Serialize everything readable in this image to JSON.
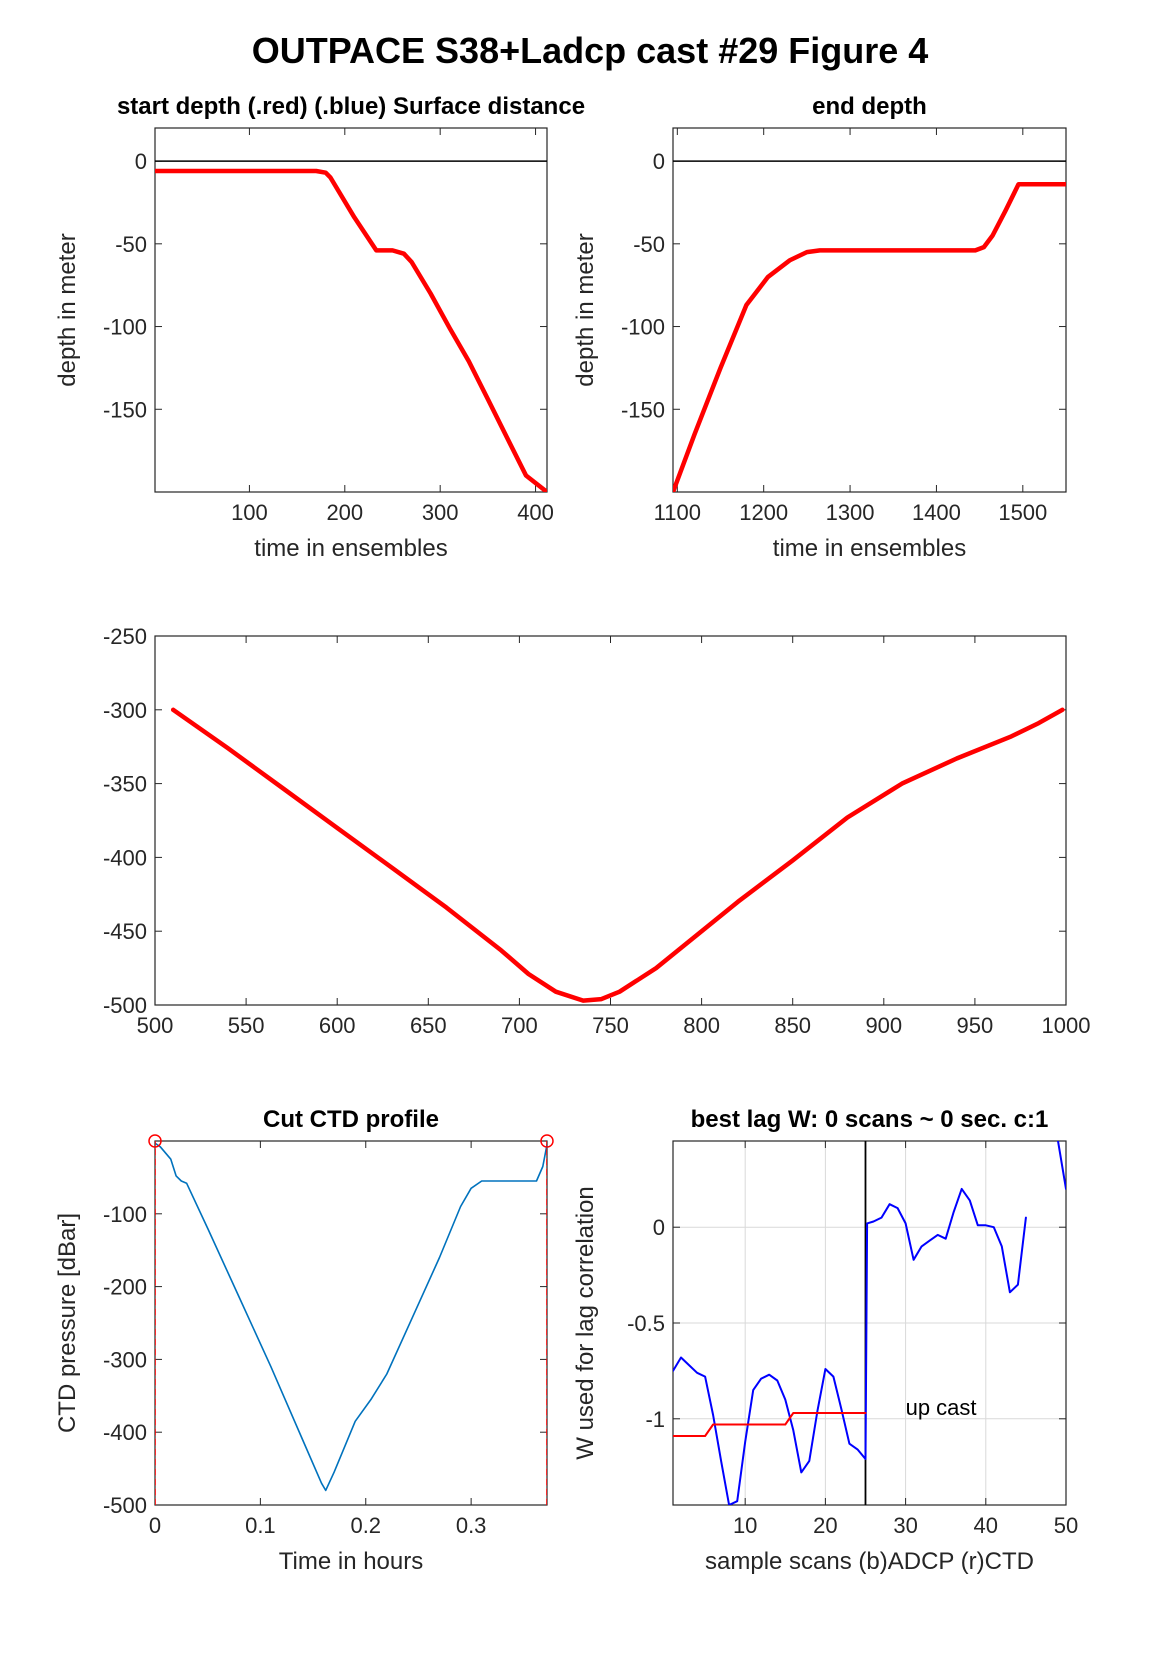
{
  "figure_title": "OUTPACE S38+Ladcp cast #29   Figure 4",
  "colors": {
    "red": "#ff0000",
    "blue": "#0000ff",
    "ctd_blue": "#0072bd",
    "axis": "#262626",
    "grid": "#d9d9d9"
  },
  "chart_data": [
    {
      "id": "start",
      "type": "line",
      "title": "start depth (.red) (.blue) Surface distance",
      "xlabel": "time in ensembles",
      "ylabel": "depth in meter",
      "xlim": [
        1,
        412
      ],
      "ylim": [
        -200,
        20
      ],
      "xticks": [
        100,
        200,
        300,
        400
      ],
      "yticks": [
        0,
        -50,
        -100,
        -150
      ],
      "hline": 0,
      "series": [
        {
          "color": "red",
          "x": [
            1,
            170,
            180,
            185,
            210,
            233,
            250,
            262,
            270,
            290,
            310,
            330,
            350,
            370,
            390,
            412
          ],
          "y": [
            -6,
            -6,
            -7,
            -10,
            -34,
            -54,
            -54,
            -56,
            -61,
            -80,
            -101,
            -121,
            -144,
            -167,
            -190,
            -200
          ]
        }
      ]
    },
    {
      "id": "end",
      "type": "line",
      "title": "end depth",
      "xlabel": "time in ensembles",
      "ylabel": "depth in meter",
      "xlim": [
        1095,
        1550
      ],
      "ylim": [
        -200,
        20
      ],
      "xticks": [
        1100,
        1200,
        1300,
        1400,
        1500
      ],
      "yticks": [
        0,
        -50,
        -100,
        -150
      ],
      "hline": 0,
      "series": [
        {
          "color": "red",
          "x": [
            1095,
            1120,
            1150,
            1180,
            1205,
            1230,
            1250,
            1265,
            1300,
            1350,
            1380,
            1420,
            1445,
            1455,
            1465,
            1480,
            1495,
            1550
          ],
          "y": [
            -200,
            -165,
            -125,
            -87,
            -70,
            -60,
            -55,
            -54,
            -54,
            -54,
            -54,
            -54,
            -54,
            -52,
            -45,
            -30,
            -14,
            -14
          ]
        }
      ]
    },
    {
      "id": "middle",
      "type": "line",
      "title": "",
      "xlabel": "",
      "ylabel": "",
      "xlim": [
        500,
        1000
      ],
      "ylim": [
        -500,
        -250
      ],
      "xticks": [
        500,
        550,
        600,
        650,
        700,
        750,
        800,
        850,
        900,
        950,
        1000
      ],
      "yticks": [
        -250,
        -300,
        -350,
        -400,
        -450,
        -500
      ],
      "series": [
        {
          "color": "red",
          "x": [
            510,
            540,
            570,
            600,
            630,
            660,
            690,
            705,
            720,
            735,
            745,
            755,
            775,
            795,
            820,
            850,
            880,
            910,
            940,
            970,
            985,
            998
          ],
          "y": [
            -300,
            -326,
            -353,
            -380,
            -407,
            -434,
            -463,
            -479,
            -491,
            -497,
            -496,
            -491,
            -475,
            -455,
            -430,
            -402,
            -373,
            -350,
            -333,
            -318,
            -309,
            -300
          ]
        }
      ]
    },
    {
      "id": "ctd",
      "type": "line",
      "title": "Cut CTD profile",
      "xlabel": "Time in hours",
      "ylabel": "CTD pressure [dBar]",
      "xlim": [
        0,
        0.372
      ],
      "ylim": [
        -500,
        0
      ],
      "xticks": [
        0,
        0.1,
        0.2,
        0.3
      ],
      "yticks": [
        -100,
        -200,
        -300,
        -400,
        -500
      ],
      "series": [
        {
          "color": "ctd_blue",
          "x": [
            0,
            0.005,
            0.015,
            0.02,
            0.025,
            0.03,
            0.05,
            0.08,
            0.11,
            0.14,
            0.158,
            0.162,
            0.17,
            0.19,
            0.205,
            0.22,
            0.245,
            0.27,
            0.29,
            0.3,
            0.31,
            0.325,
            0.33,
            0.345,
            0.355,
            0.362,
            0.368,
            0.372
          ],
          "y": [
            -3,
            -8,
            -25,
            -48,
            -55,
            -58,
            -120,
            -215,
            -310,
            -410,
            -470,
            -480,
            -455,
            -385,
            -355,
            -320,
            -240,
            -160,
            -90,
            -65,
            -55,
            -55,
            -55,
            -55,
            -55,
            -55,
            -35,
            -5
          ]
        },
        {
          "color": "red",
          "style": "dashed",
          "x": [
            0,
            0
          ],
          "y": [
            -500,
            0
          ]
        },
        {
          "color": "red",
          "style": "dashed",
          "x": [
            0.372,
            0.372
          ],
          "y": [
            -500,
            0
          ]
        }
      ],
      "markers": [
        {
          "x": 0,
          "y": 0,
          "color": "red",
          "shape": "circle"
        },
        {
          "x": 0.372,
          "y": 0,
          "color": "red",
          "shape": "circle"
        }
      ]
    },
    {
      "id": "lag",
      "type": "line",
      "title": "best lag W: 0 scans ~ 0 sec.  c:1",
      "xlabel": "sample scans (b)ADCP (r)CTD",
      "ylabel": "W used for lag correlation",
      "xlim": [
        1,
        50
      ],
      "ylim": [
        -1.45,
        0.45
      ],
      "xticks": [
        10,
        20,
        30,
        40,
        50
      ],
      "yticks": [
        0,
        -0.5,
        -1
      ],
      "grid": true,
      "vline": 25,
      "annotation": {
        "text": "up cast",
        "x": 30,
        "y": -0.98
      },
      "series": [
        {
          "color": "blue",
          "x": [
            1,
            2,
            3,
            4,
            5,
            6,
            7,
            8,
            9,
            10,
            11,
            12,
            13,
            14,
            15,
            16,
            17,
            18,
            19,
            20,
            21,
            22,
            23,
            24,
            25,
            25.2,
            26,
            27,
            28,
            29,
            30,
            31,
            32,
            33,
            34,
            35,
            36,
            37,
            38,
            39,
            40,
            41,
            42,
            43,
            44,
            45,
            46,
            47,
            48,
            49,
            50
          ],
          "y": [
            -0.75,
            -0.68,
            -0.72,
            -0.76,
            -0.78,
            -0.98,
            -1.22,
            -1.45,
            -1.43,
            -1.12,
            -0.85,
            -0.79,
            -0.77,
            -0.8,
            -0.9,
            -1.06,
            -1.28,
            -1.22,
            -0.96,
            -0.74,
            -0.78,
            -0.95,
            -1.13,
            -1.16,
            -1.21,
            0.02,
            0.03,
            0.05,
            0.12,
            0.1,
            0.02,
            -0.17,
            -0.1,
            -0.07,
            -0.04,
            -0.06,
            0.08,
            0.2,
            0.14,
            0.01,
            0.01,
            0.0,
            -0.1,
            -0.34,
            -0.3,
            0.05,
            null,
            null,
            null,
            0.45,
            0.2
          ]
        },
        {
          "color": "red",
          "x": [
            1,
            5,
            6,
            15,
            16,
            25
          ],
          "y": [
            -1.09,
            -1.09,
            -1.03,
            -1.03,
            -0.97,
            -0.97
          ]
        }
      ]
    }
  ]
}
